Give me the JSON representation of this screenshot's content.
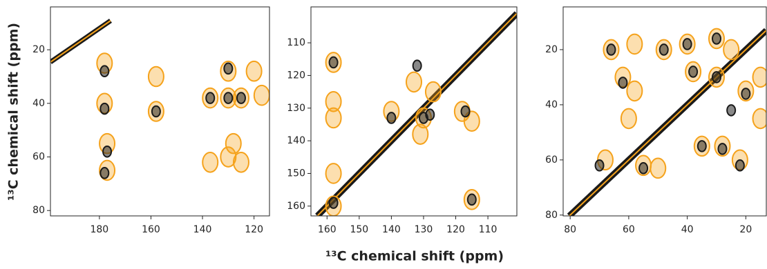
{
  "chart_data": [
    {
      "type": "contour",
      "ylabel": "¹³C chemical shift (ppm)",
      "xlim": [
        114,
        199
      ],
      "x_inverted": true,
      "ylim": [
        4,
        82
      ],
      "y_inverted": true,
      "xticks": [
        180,
        160,
        140,
        120
      ],
      "yticks": [
        20,
        40,
        60,
        80
      ],
      "series": [
        {
          "color": "#f5a21b",
          "x": [
            178,
            178,
            177,
            177,
            158,
            158,
            137,
            130,
            130,
            125,
            120,
            117,
            137,
            130,
            128,
            125
          ],
          "y": [
            25,
            40,
            55,
            65,
            30,
            43,
            38,
            28,
            38,
            38,
            28,
            37,
            62,
            60,
            55,
            62
          ]
        },
        {
          "color": "#1a1a1a",
          "x": [
            178,
            178,
            177,
            178,
            158,
            137,
            130,
            130,
            125
          ],
          "y": [
            28,
            42,
            58,
            66,
            43,
            38,
            27,
            38,
            38
          ]
        }
      ]
    },
    {
      "type": "contour",
      "xlabel": "¹³C chemical shift (ppm)",
      "diagonal": true,
      "xlim": [
        101,
        165
      ],
      "x_inverted": true,
      "ylim": [
        99,
        163
      ],
      "y_inverted": true,
      "xticks": [
        160,
        150,
        140,
        130,
        120,
        110
      ],
      "yticks": [
        110,
        120,
        130,
        140,
        150,
        160
      ],
      "series": [
        {
          "color": "#f5a21b",
          "x": [
            158,
            158,
            158,
            158,
            158,
            140,
            133,
            130,
            127,
            118,
            115,
            115,
            131
          ],
          "y": [
            116,
            128,
            133,
            150,
            160,
            131,
            122,
            133,
            125,
            131,
            134,
            158,
            138
          ]
        },
        {
          "color": "#1a1a1a",
          "x": [
            158,
            158,
            140,
            132,
            130,
            128,
            117,
            115
          ],
          "y": [
            116,
            159,
            133,
            117,
            133,
            132,
            131,
            158
          ]
        }
      ]
    },
    {
      "type": "contour",
      "diagonal": true,
      "xlim": [
        13,
        82.4
      ],
      "x_inverted": true,
      "ylim": [
        4.5,
        80.3
      ],
      "y_inverted": true,
      "xticks": [
        80,
        60,
        40,
        20
      ],
      "yticks": [
        20,
        40,
        60,
        80
      ],
      "series": [
        {
          "color": "#f5a21b",
          "x": [
            66,
            58,
            48,
            40,
            30,
            25,
            62,
            58,
            38,
            30,
            20,
            35,
            28,
            22,
            68,
            55,
            15,
            15,
            60,
            50
          ],
          "y": [
            20,
            18,
            20,
            18,
            16,
            20,
            30,
            35,
            28,
            30,
            35,
            55,
            55,
            60,
            60,
            62,
            30,
            45,
            45,
            63
          ]
        },
        {
          "color": "#1a1a1a",
          "x": [
            66,
            48,
            40,
            30,
            62,
            38,
            30,
            20,
            35,
            28,
            22,
            55,
            70,
            25
          ],
          "y": [
            20,
            20,
            18,
            16,
            32,
            28,
            30,
            36,
            55,
            56,
            62,
            63,
            62,
            42
          ]
        }
      ]
    }
  ]
}
